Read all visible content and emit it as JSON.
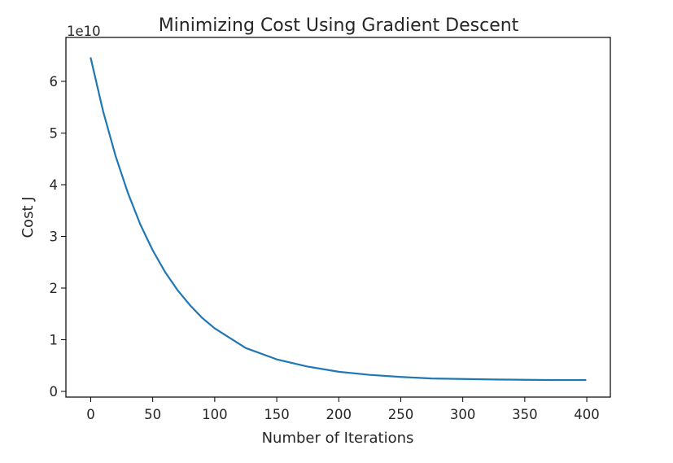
{
  "chart_data": {
    "type": "line",
    "title": "Minimizing Cost Using Gradient Descent",
    "xlabel": "Number of Iterations",
    "ylabel": "Cost J",
    "y_offset_label": "1e10",
    "xlim": [
      -20,
      419
    ],
    "ylim": [
      -0.11,
      6.85
    ],
    "x_ticks": [
      0,
      50,
      100,
      150,
      200,
      250,
      300,
      350,
      400
    ],
    "y_ticks": [
      0,
      1,
      2,
      3,
      4,
      5,
      6
    ],
    "grid": false,
    "series": [
      {
        "color": "#1f77b4",
        "x": [
          0,
          10,
          20,
          30,
          40,
          50,
          60,
          70,
          80,
          90,
          100,
          125,
          150,
          175,
          200,
          225,
          250,
          275,
          300,
          325,
          350,
          375,
          399
        ],
        "y": [
          6.45,
          5.42,
          4.56,
          3.84,
          3.23,
          2.73,
          2.31,
          1.96,
          1.67,
          1.42,
          1.22,
          0.84,
          0.62,
          0.48,
          0.38,
          0.32,
          0.28,
          0.25,
          0.24,
          0.23,
          0.225,
          0.22,
          0.22
        ]
      }
    ]
  }
}
